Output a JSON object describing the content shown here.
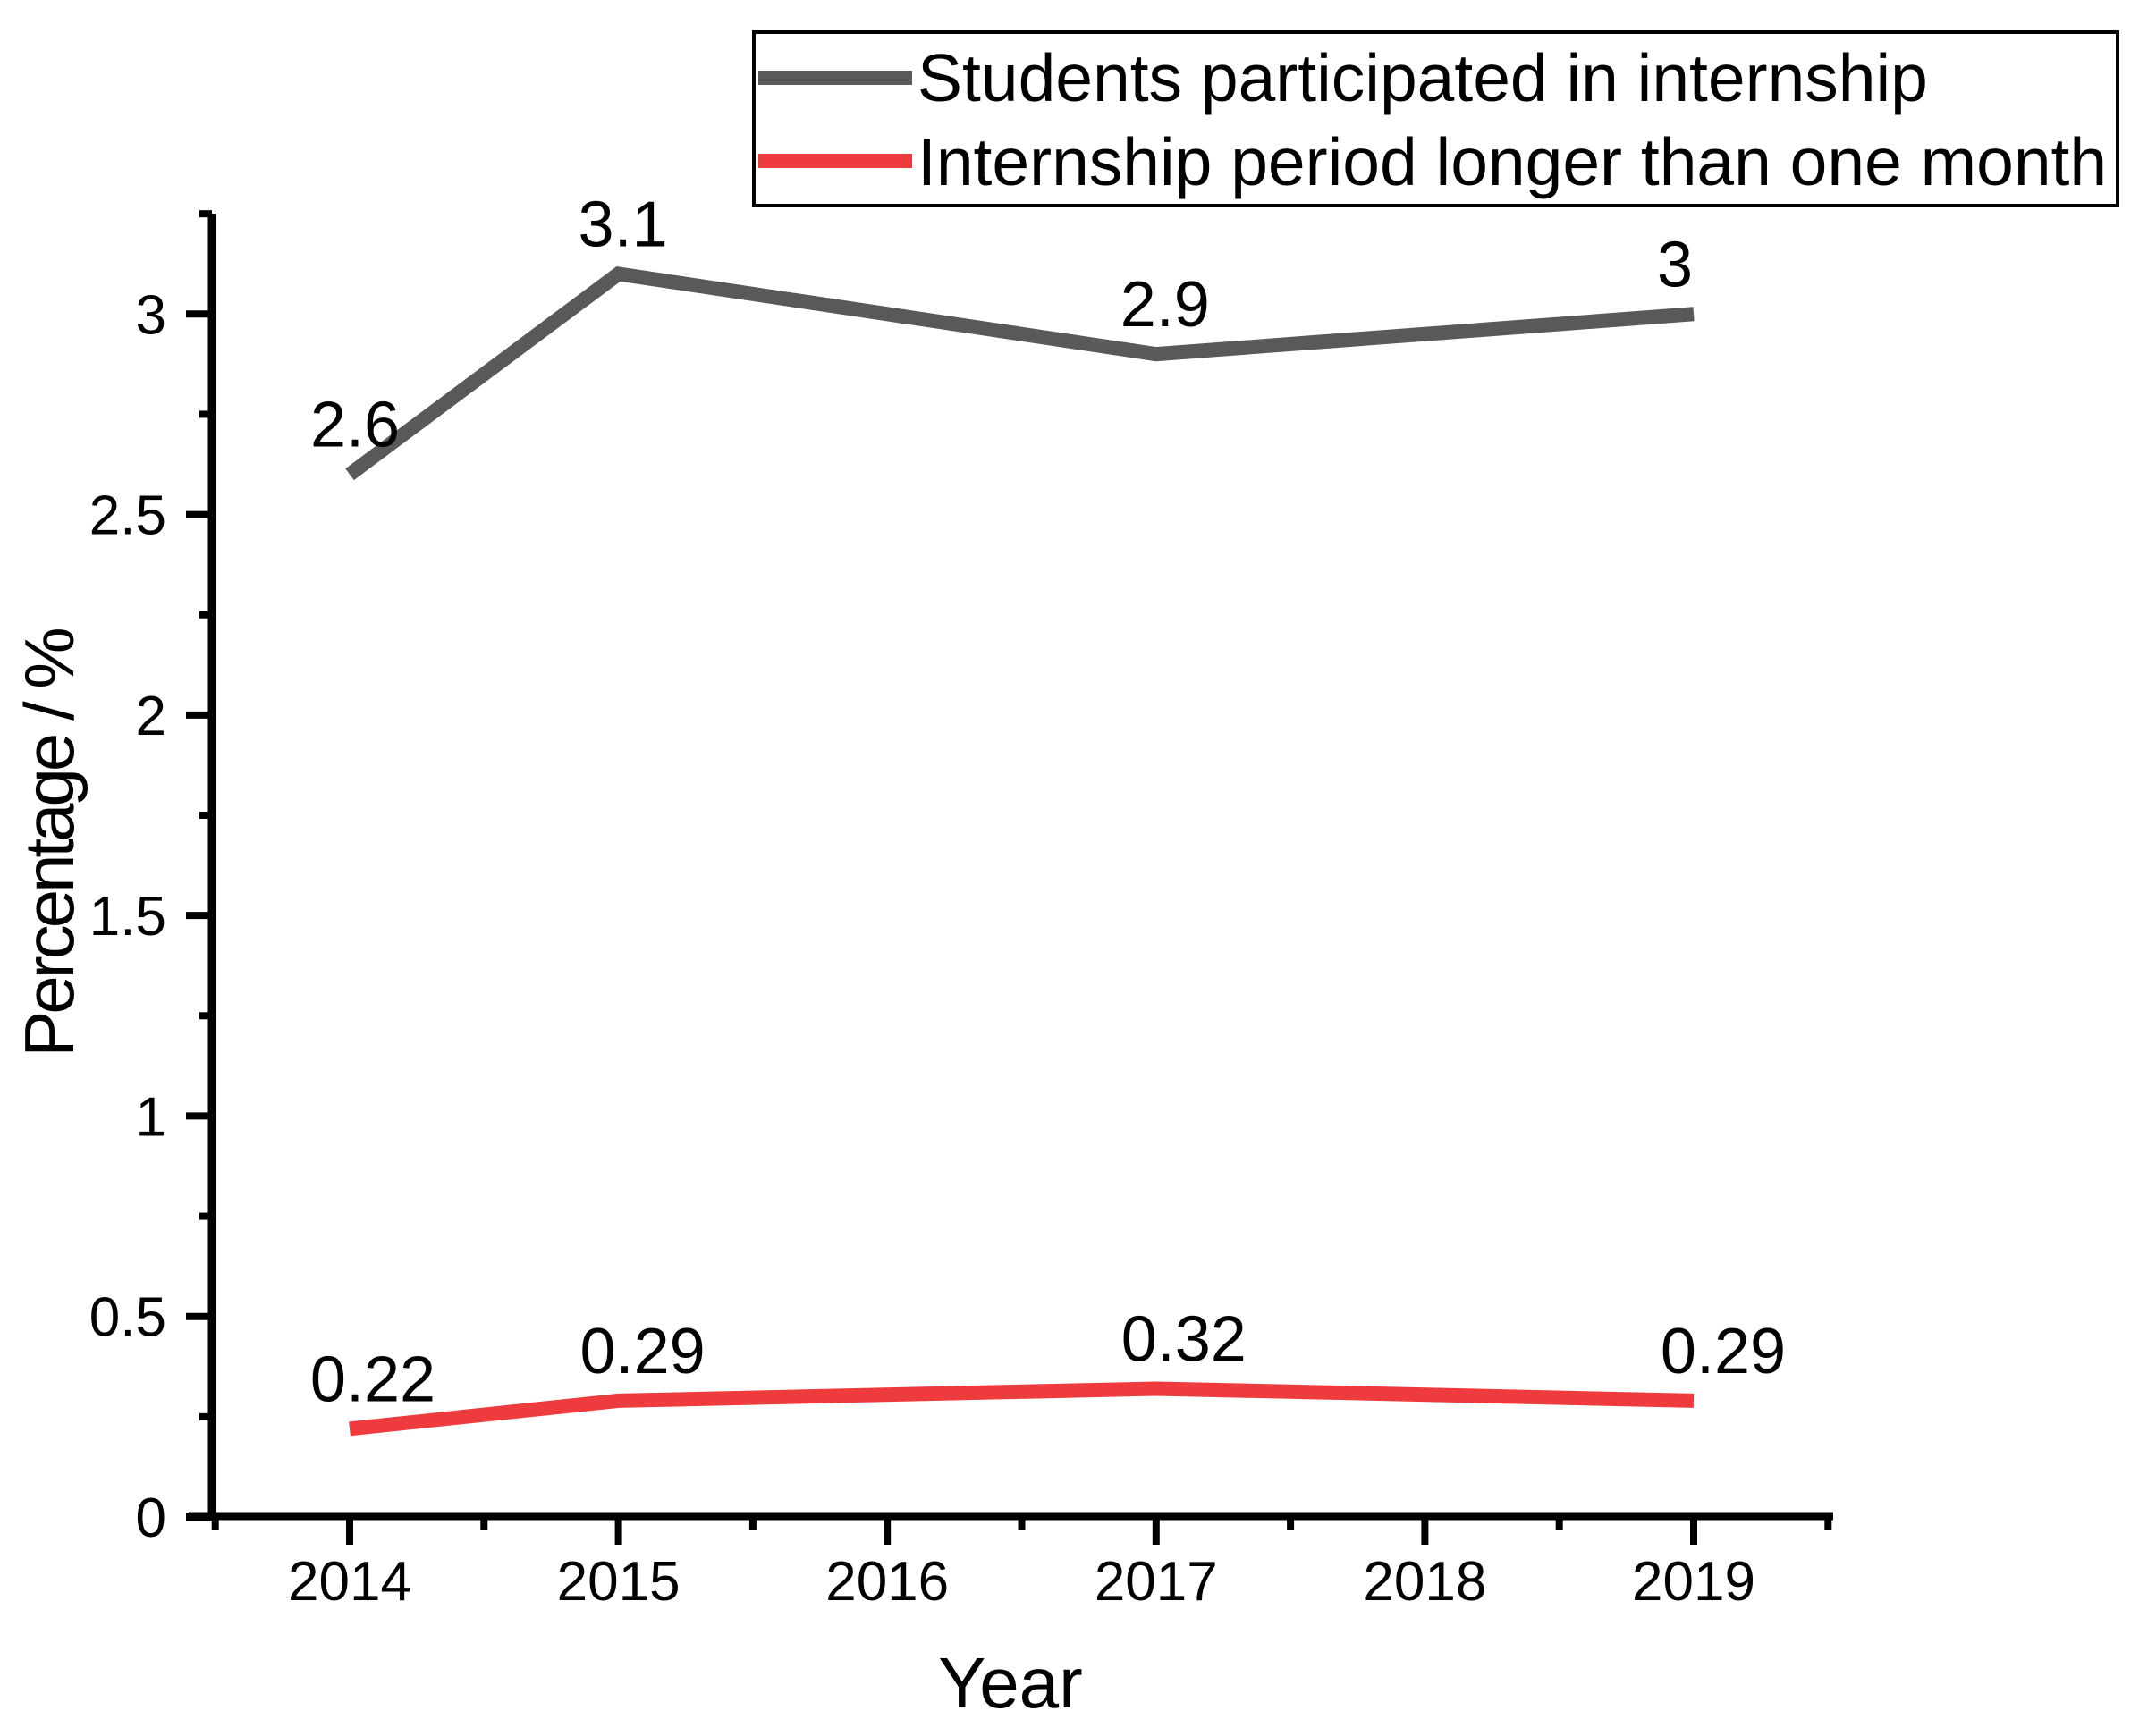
{
  "chart_data": {
    "type": "line",
    "title": "",
    "xlabel": "Year",
    "ylabel": "Percentage / %",
    "x_ticks": [
      2014,
      2015,
      2016,
      2017,
      2018,
      2019
    ],
    "x_minor_ticks": [
      2013.5,
      2014.5,
      2015.5,
      2016.5,
      2017.5,
      2018.5,
      2019.5
    ],
    "xlim": [
      2013.4,
      2019.55
    ],
    "ylim": [
      0,
      3.25
    ],
    "y_major_ticks": [
      0,
      0.5,
      1,
      1.5,
      2,
      2.5,
      3
    ],
    "y_tick_labels": [
      "0",
      "0.5",
      "1",
      "1.5",
      "2",
      "2.5",
      "3"
    ],
    "y_minor_ticks": [
      0.25,
      0.75,
      1.25,
      1.75,
      2.25,
      2.75,
      3.25
    ],
    "grid": false,
    "legend_position": "top-right",
    "background_color": "#ffffff",
    "axis_color": "#000000",
    "series": [
      {
        "name": "Students participated in internship",
        "color": "#595959",
        "x": [
          2014,
          2015,
          2017,
          2019
        ],
        "values": [
          2.6,
          3.1,
          2.9,
          3
        ],
        "labels": [
          "2.6",
          "3.1",
          "2.9",
          "3"
        ]
      },
      {
        "name": "Internship period longer than one month",
        "color": "#ee3b3e",
        "x": [
          2014,
          2015,
          2017,
          2019
        ],
        "values": [
          0.22,
          0.29,
          0.32,
          0.29
        ],
        "labels": [
          "0.22",
          "0.29",
          "0.32",
          "0.29"
        ]
      }
    ]
  }
}
